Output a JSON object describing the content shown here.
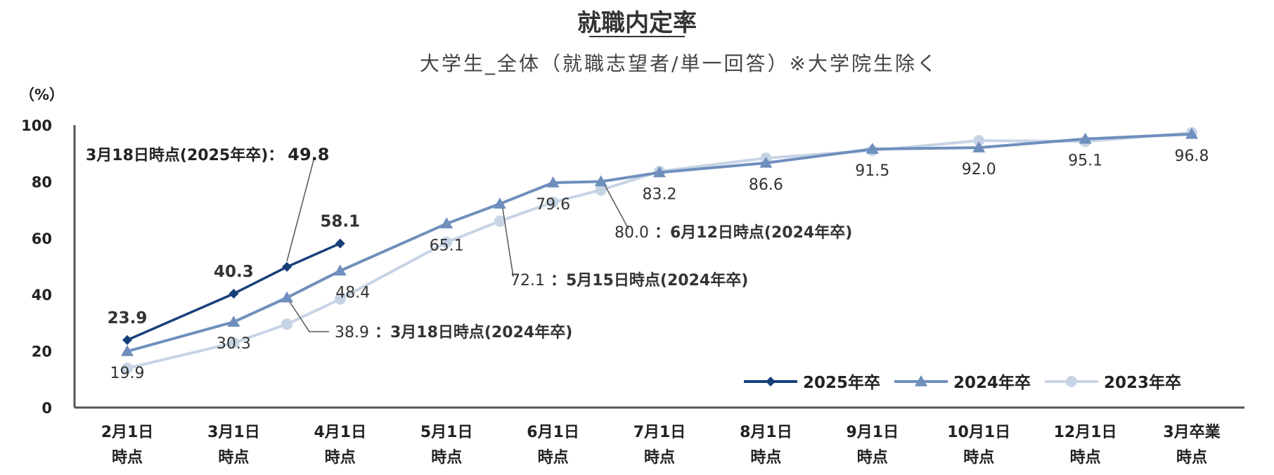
{
  "chart_data": {
    "type": "line",
    "title": "就職内定率",
    "subtitle": "大学生_全体（就職志望者/単一回答）※大学院生除く",
    "y_unit_label": "（%）",
    "ylim": [
      0,
      100
    ],
    "y_ticks": [
      "0",
      "20",
      "40",
      "60",
      "80",
      "100"
    ],
    "categories": [
      [
        "2月1日",
        "時点"
      ],
      [
        "3月1日",
        "時点"
      ],
      [
        "4月1日",
        "時点"
      ],
      [
        "5月1日",
        "時点"
      ],
      [
        "6月1日",
        "時点"
      ],
      [
        "7月1日",
        "時点"
      ],
      [
        "8月1日",
        "時点"
      ],
      [
        "9月1日",
        "時点"
      ],
      [
        "10月1日",
        "時点"
      ],
      [
        "12月1日",
        "時点"
      ],
      [
        "3月卒業",
        "時点"
      ]
    ],
    "series": [
      {
        "name": "2023年卒",
        "color": "#c7d4e6",
        "marker": "circle",
        "points": [
          [
            0,
            13.9
          ],
          [
            1,
            22.9
          ],
          [
            1.5,
            29.5
          ],
          [
            2,
            38.4
          ],
          [
            3,
            58.5
          ],
          [
            3.5,
            66.0
          ],
          [
            4,
            72.7
          ],
          [
            4.45,
            77.0
          ],
          [
            5,
            83.6
          ],
          [
            6,
            88.3
          ],
          [
            7,
            91.0
          ],
          [
            8,
            94.5
          ],
          [
            9,
            94.2
          ],
          [
            10,
            97.3
          ]
        ]
      },
      {
        "name": "2024年卒",
        "color": "#6f8fbd",
        "marker": "triangle",
        "points": [
          [
            0,
            19.9
          ],
          [
            1,
            30.3
          ],
          [
            1.5,
            38.9
          ],
          [
            2,
            48.4
          ],
          [
            3,
            65.1
          ],
          [
            3.5,
            72.1
          ],
          [
            4,
            79.6
          ],
          [
            4.45,
            80.0
          ],
          [
            5,
            83.2
          ],
          [
            6,
            86.6
          ],
          [
            7,
            91.5
          ],
          [
            8,
            92.0
          ],
          [
            9,
            95.1
          ],
          [
            10,
            96.8
          ]
        ]
      },
      {
        "name": "2025年卒",
        "color": "#17407a",
        "marker": "diamond",
        "points": [
          [
            0,
            23.9
          ],
          [
            1,
            40.3
          ],
          [
            1.5,
            49.8
          ],
          [
            2,
            58.1
          ]
        ]
      }
    ],
    "data_labels": [
      {
        "text": "23.9",
        "x": 0,
        "y": 23.9,
        "style": "bold",
        "pos": "above"
      },
      {
        "text": "40.3",
        "x": 1,
        "y": 40.3,
        "style": "bold",
        "pos": "above"
      },
      {
        "text": "58.1",
        "x": 2,
        "y": 58.1,
        "style": "bold",
        "pos": "above"
      },
      {
        "text": "19.9",
        "x": 0,
        "y": 19.9,
        "style": "normal",
        "pos": "below"
      },
      {
        "text": "30.3",
        "x": 1,
        "y": 30.3,
        "style": "normal",
        "pos": "below"
      },
      {
        "text": "48.4",
        "x": 2,
        "y": 48.4,
        "style": "normal",
        "pos": "right"
      },
      {
        "text": "65.1",
        "x": 3,
        "y": 65.1,
        "style": "normal",
        "pos": "below"
      },
      {
        "text": "79.6",
        "x": 4,
        "y": 79.6,
        "style": "normal",
        "pos": "below"
      },
      {
        "text": "83.2",
        "x": 5,
        "y": 83.2,
        "style": "normal",
        "pos": "below"
      },
      {
        "text": "86.6",
        "x": 6,
        "y": 86.6,
        "style": "normal",
        "pos": "below"
      },
      {
        "text": "91.5",
        "x": 7,
        "y": 91.5,
        "style": "normal",
        "pos": "below"
      },
      {
        "text": "92.0",
        "x": 8,
        "y": 92.0,
        "style": "normal",
        "pos": "below"
      },
      {
        "text": "95.1",
        "x": 9,
        "y": 95.1,
        "style": "normal",
        "pos": "below"
      },
      {
        "text": "96.8",
        "x": 10,
        "y": 96.8,
        "style": "normal",
        "pos": "below"
      }
    ],
    "annotations": [
      {
        "label": "3月18日時点(2025年卒)：",
        "value": "49.8",
        "x": 1.5,
        "y": 49.8
      },
      {
        "label": "：3月18日時点(2024年卒)",
        "value": "38.9",
        "x": 1.5,
        "y": 38.9
      },
      {
        "label": "：5月15日時点(2024年卒)",
        "value": "72.1",
        "x": 3.5,
        "y": 72.1
      },
      {
        "label": "：6月12日時点(2024年卒)",
        "value": "80.0",
        "x": 4.45,
        "y": 80.0
      }
    ],
    "legend_order": [
      "2025年卒",
      "2024年卒",
      "2023年卒"
    ],
    "legend_position": "bottom-right",
    "grid": false
  }
}
